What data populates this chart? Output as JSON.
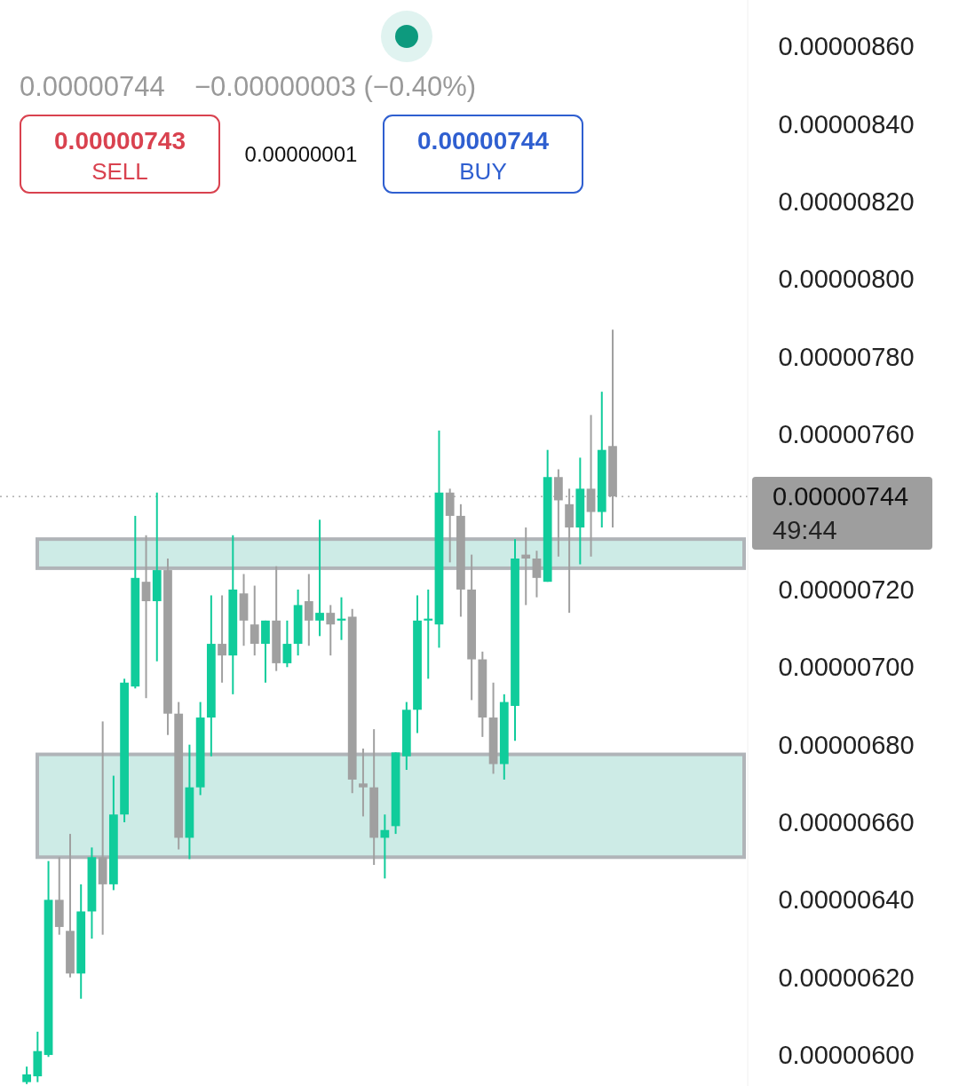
{
  "chart_data": {
    "type": "candlestick",
    "categories": [
      null,
      null,
      null,
      null,
      null,
      null,
      null,
      null,
      null,
      null,
      null,
      null,
      null,
      null,
      null,
      null,
      null,
      null,
      null,
      null,
      null,
      null,
      null,
      null,
      null,
      null,
      null,
      null,
      null,
      null,
      null,
      null,
      null,
      null,
      null,
      null,
      null,
      null,
      null,
      null,
      null,
      null,
      null,
      null,
      null,
      null,
      null,
      null,
      null,
      null,
      null,
      null,
      null,
      null,
      null,
      null,
      null,
      null,
      null,
      null,
      null,
      null,
      null,
      null,
      null,
      null,
      null
    ],
    "ohlc": [
      [
        5.93e-06,
        5.97e-06,
        5.925e-06,
        5.95e-06
      ],
      [
        5.945e-06,
        6.06e-06,
        5.93e-06,
        6.01e-06
      ],
      [
        6e-06,
        6.5e-06,
        5.995e-06,
        6.4e-06
      ],
      [
        6.4e-06,
        6.51e-06,
        6.31e-06,
        6.33e-06
      ],
      [
        6.32e-06,
        6.57e-06,
        6.2e-06,
        6.21e-06
      ],
      [
        6.21e-06,
        6.44e-06,
        6.145e-06,
        6.37e-06
      ],
      [
        6.37e-06,
        6.535e-06,
        6.3e-06,
        6.51e-06
      ],
      [
        6.51e-06,
        6.86e-06,
        6.31e-06,
        6.44e-06
      ],
      [
        6.44e-06,
        6.72e-06,
        6.425e-06,
        6.62e-06
      ],
      [
        6.62e-06,
        6.97e-06,
        6.6e-06,
        6.96e-06
      ],
      [
        6.95e-06,
        7.39e-06,
        6.945e-06,
        7.23e-06
      ],
      [
        7.22e-06,
        7.34e-06,
        6.92e-06,
        7.17e-06
      ],
      [
        7.17e-06,
        7.45e-06,
        7.015e-06,
        7.25e-06
      ],
      [
        7.25e-06,
        7.28e-06,
        6.825e-06,
        6.88e-06
      ],
      [
        6.88e-06,
        6.91e-06,
        6.53e-06,
        6.56e-06
      ],
      [
        6.56e-06,
        6.8e-06,
        6.505e-06,
        6.69e-06
      ],
      [
        6.69e-06,
        6.91e-06,
        6.67e-06,
        6.87e-06
      ],
      [
        6.87e-06,
        7.185e-06,
        6.77e-06,
        7.06e-06
      ],
      [
        7.06e-06,
        7.185e-06,
        6.96e-06,
        7.03e-06
      ],
      [
        7.03e-06,
        7.34e-06,
        6.93e-06,
        7.2e-06
      ],
      [
        7.19e-06,
        7.24e-06,
        7.055e-06,
        7.12e-06
      ],
      [
        7.11e-06,
        7.21e-06,
        7.03e-06,
        7.06e-06
      ],
      [
        7.06e-06,
        7.12e-06,
        6.96e-06,
        7.12e-06
      ],
      [
        7.12e-06,
        7.26e-06,
        6.99e-06,
        7.01e-06
      ],
      [
        7.01e-06,
        7.12e-06,
        7e-06,
        7.06e-06
      ],
      [
        7.06e-06,
        7.2e-06,
        7.03e-06,
        7.16e-06
      ],
      [
        7.17e-06,
        7.24e-06,
        7.055e-06,
        7.12e-06
      ],
      [
        7.12e-06,
        7.38e-06,
        7.08e-06,
        7.14e-06
      ],
      [
        7.14e-06,
        7.16e-06,
        7.03e-06,
        7.11e-06
      ],
      [
        7.12e-06,
        7.18e-06,
        7.07e-06,
        7.125e-06
      ],
      [
        7.13e-06,
        7.15e-06,
        6.675e-06,
        6.71e-06
      ],
      [
        6.7e-06,
        6.79e-06,
        6.615e-06,
        6.69e-06
      ],
      [
        6.69e-06,
        6.84e-06,
        6.49e-06,
        6.56e-06
      ],
      [
        6.56e-06,
        6.62e-06,
        6.455e-06,
        6.58e-06
      ],
      [
        6.59e-06,
        6.78e-06,
        6.57e-06,
        6.78e-06
      ],
      [
        6.77e-06,
        6.91e-06,
        6.735e-06,
        6.89e-06
      ],
      [
        6.89e-06,
        7.185e-06,
        6.83e-06,
        7.12e-06
      ],
      [
        7.12e-06,
        7.2e-06,
        6.97e-06,
        7.125e-06
      ],
      [
        7.11e-06,
        7.61e-06,
        7.05e-06,
        7.45e-06
      ],
      [
        7.45e-06,
        7.46e-06,
        7.27e-06,
        7.39e-06
      ],
      [
        7.39e-06,
        7.42e-06,
        7.13e-06,
        7.2e-06
      ],
      [
        7.2e-06,
        7.29e-06,
        6.915e-06,
        7.02e-06
      ],
      [
        7.02e-06,
        7.04e-06,
        6.82e-06,
        6.87e-06
      ],
      [
        6.87e-06,
        6.96e-06,
        6.725e-06,
        6.75e-06
      ],
      [
        6.75e-06,
        6.93e-06,
        6.71e-06,
        6.91e-06
      ],
      [
        6.9e-06,
        7.33e-06,
        6.81e-06,
        7.28e-06
      ],
      [
        7.29e-06,
        7.36e-06,
        7.16e-06,
        7.28e-06
      ],
      [
        7.28e-06,
        7.3e-06,
        7.18e-06,
        7.23e-06
      ],
      [
        7.22e-06,
        7.56e-06,
        7.22e-06,
        7.49e-06
      ],
      [
        7.49e-06,
        7.51e-06,
        7.285e-06,
        7.43e-06
      ],
      [
        7.42e-06,
        7.46e-06,
        7.14e-06,
        7.36e-06
      ],
      [
        7.36e-06,
        7.54e-06,
        7.265e-06,
        7.46e-06
      ],
      [
        7.46e-06,
        7.65e-06,
        7.285e-06,
        7.4e-06
      ],
      [
        7.4e-06,
        7.71e-06,
        7.36e-06,
        7.56e-06
      ],
      [
        7.57e-06,
        7.87e-06,
        7.36e-06,
        7.44e-06
      ],
      null,
      null,
      null,
      null,
      null,
      null,
      null,
      null,
      null,
      null,
      null,
      null
    ],
    "colors": [
      "#10cc9b",
      "#10cc9b",
      "#10cc9b",
      "#a0a0a0",
      "#a0a0a0",
      "#10cc9b",
      "#10cc9b",
      "#a0a0a0",
      "#10cc9b",
      "#10cc9b",
      "#10cc9b",
      "#a0a0a0",
      "#10cc9b",
      "#a0a0a0",
      "#a0a0a0",
      "#10cc9b",
      "#10cc9b",
      "#10cc9b",
      "#a0a0a0",
      "#10cc9b",
      "#a0a0a0",
      "#a0a0a0",
      "#10cc9b",
      "#a0a0a0",
      "#10cc9b",
      "#10cc9b",
      "#a0a0a0",
      "#10cc9b",
      "#a0a0a0",
      "#10cc9b",
      "#a0a0a0",
      "#a0a0a0",
      "#a0a0a0",
      "#10cc9b",
      "#10cc9b",
      "#10cc9b",
      "#10cc9b",
      "#10cc9b",
      "#10cc9b",
      "#a0a0a0",
      "#a0a0a0",
      "#a0a0a0",
      "#a0a0a0",
      "#a0a0a0",
      "#10cc9b",
      "#10cc9b",
      "#a0a0a0",
      "#a0a0a0",
      "#10cc9b",
      "#a0a0a0",
      "#a0a0a0",
      "#10cc9b",
      "#a0a0a0",
      "#10cc9b",
      "#a0a0a0",
      null,
      null,
      null,
      null,
      null,
      null,
      null,
      null,
      null,
      null,
      null,
      null
    ],
    "ylim": [
      5.92e-06,
      8.72e-06
    ],
    "yticks": [
      {
        "value": 6e-06,
        "label": "0.00000600"
      },
      {
        "value": 6.2e-06,
        "label": "0.00000620"
      },
      {
        "value": 6.4e-06,
        "label": "0.00000640"
      },
      {
        "value": 6.6e-06,
        "label": "0.00000660"
      },
      {
        "value": 6.8e-06,
        "label": "0.00000680"
      },
      {
        "value": 7e-06,
        "label": "0.00000700"
      },
      {
        "value": 7.2e-06,
        "label": "0.00000720"
      },
      {
        "value": 7.6e-06,
        "label": "0.00000760"
      },
      {
        "value": 7.8e-06,
        "label": "0.00000780"
      },
      {
        "value": 8e-06,
        "label": "0.00000800"
      },
      {
        "value": 8.2e-06,
        "label": "0.00000820"
      },
      {
        "value": 8.4e-06,
        "label": "0.00000840"
      },
      {
        "value": 8.6e-06,
        "label": "0.00000860"
      }
    ],
    "tick_labels": "y",
    "grid": false,
    "ref_lines": [
      {
        "axis": "y",
        "value": 7.44e-06,
        "label": "0.00000744",
        "color": "#9e9e9e",
        "line_style": "dotted"
      }
    ],
    "bands": [
      {
        "axis": "y",
        "from": 7.255e-06,
        "to": 7.33e-06,
        "color": "#cdebe6"
      },
      {
        "axis": "y",
        "from": 6.51e-06,
        "to": 6.775e-06,
        "color": "#cdebe6"
      }
    ],
    "annotations": [
      "0.00000744",
      "−0.00000003 (−0.40%)",
      "0.00000743",
      "SELL",
      "0.00000001",
      "0.00000744",
      "BUY",
      "49:44"
    ]
  }
}
